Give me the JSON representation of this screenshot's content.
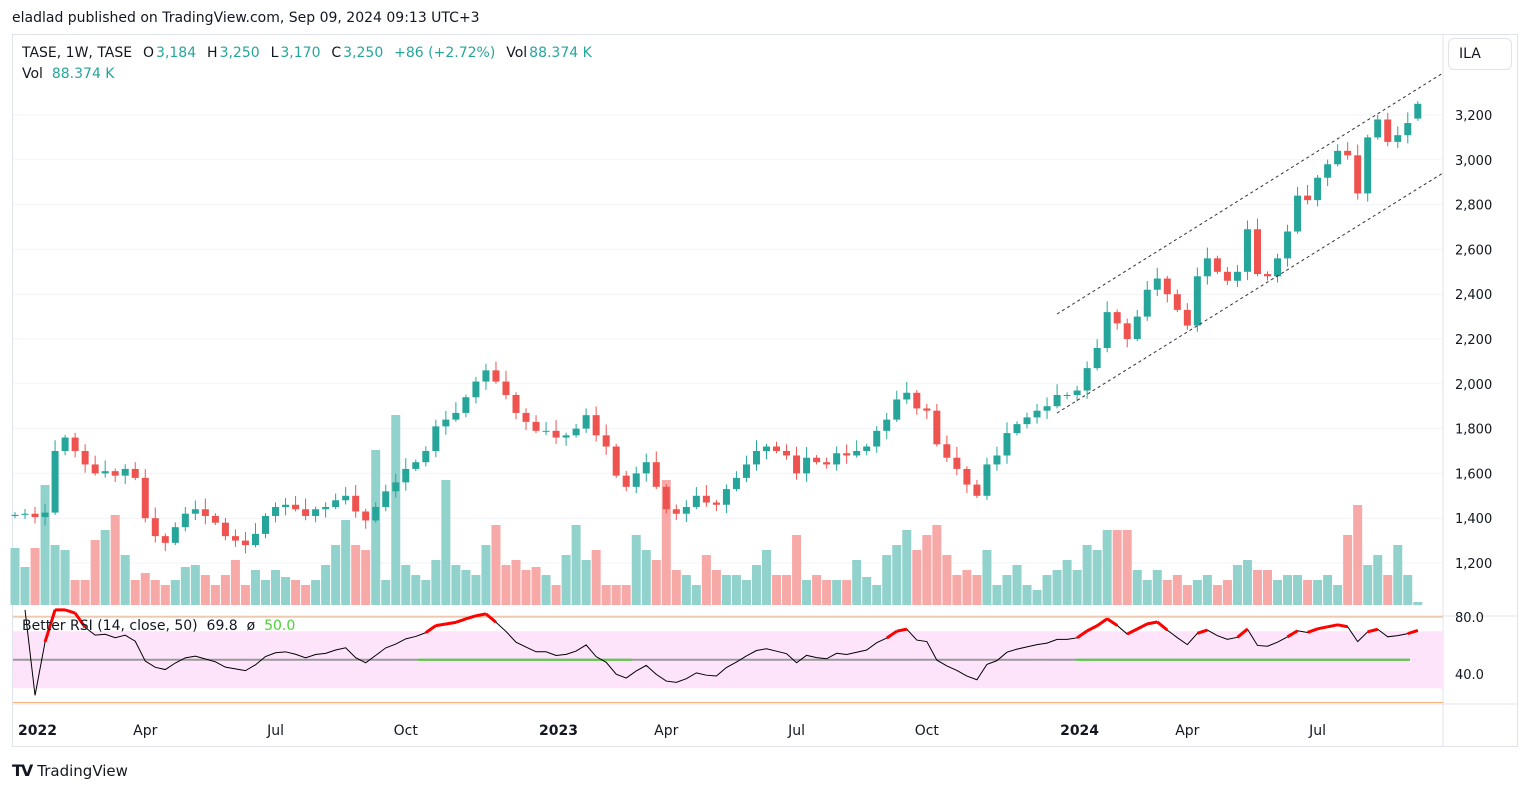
{
  "publisher_line": "eladlad published on TradingView.com, Sep 09, 2024 09:13 UTC+3",
  "legend": {
    "symbol": "TASE, 1W, TASE",
    "o_label": "O",
    "o": "3,184",
    "h_label": "H",
    "h": "3,250",
    "l_label": "L",
    "l": "3,170",
    "c_label": "C",
    "c": "3,250",
    "change": "+86 (+2.72%)",
    "vol_label": "Vol",
    "vol": "88.374 K"
  },
  "vol_legend": {
    "label": "Vol",
    "value": "88.374 K"
  },
  "currency_button": "ILA",
  "rsi_legend": {
    "name": "Better RSI (14, close, 50)",
    "value": "69.8",
    "symbol": "ø",
    "mid": "50.0"
  },
  "footer": {
    "brand": "TradingView"
  },
  "colors": {
    "up": "#26a69a",
    "down": "#ef5350",
    "vol_up": "#92d2cc",
    "vol_down": "#f7a9a7",
    "rsi_band": "#fde4fb",
    "rsi_line": "#000000",
    "mid_green": "#4cd137",
    "level_orange": "#f7b27a"
  },
  "chart_data": {
    "type": "candlestick",
    "title": "TASE, 1W, TASE",
    "price_axis": {
      "ticks": [
        "3,200",
        "3,000",
        "2,800",
        "2,600",
        "2,400",
        "2,200",
        "2,000",
        "1,800",
        "1,600",
        "1,400",
        "1,200"
      ],
      "tick_values": [
        3200,
        3000,
        2800,
        2600,
        2400,
        2200,
        2000,
        1800,
        1600,
        1400,
        1200
      ]
    },
    "rsi_axis": {
      "ticks": [
        "80.0",
        "40.0"
      ],
      "tick_values": [
        80,
        40
      ],
      "band": [
        30,
        70
      ],
      "levels": [
        80,
        20
      ],
      "mid": 50
    },
    "time_axis": [
      {
        "label": "2022",
        "bold": true,
        "week": 0
      },
      {
        "label": "Apr",
        "week": 13
      },
      {
        "label": "Jul",
        "week": 26
      },
      {
        "label": "Oct",
        "week": 39
      },
      {
        "label": "2023",
        "bold": true,
        "week": 52
      },
      {
        "label": "Apr",
        "week": 65
      },
      {
        "label": "Jul",
        "week": 78
      },
      {
        "label": "Oct",
        "week": 91
      },
      {
        "label": "2024",
        "bold": true,
        "week": 104
      },
      {
        "label": "Apr",
        "week": 117
      },
      {
        "label": "Jul",
        "week": 130
      }
    ],
    "close": [
      1415,
      1420,
      1405,
      1425,
      1700,
      1760,
      1700,
      1640,
      1600,
      1610,
      1590,
      1620,
      1580,
      1400,
      1320,
      1290,
      1360,
      1420,
      1440,
      1410,
      1380,
      1320,
      1300,
      1280,
      1330,
      1410,
      1450,
      1460,
      1440,
      1410,
      1440,
      1450,
      1480,
      1500,
      1430,
      1390,
      1450,
      1520,
      1560,
      1620,
      1650,
      1700,
      1810,
      1840,
      1870,
      1940,
      2010,
      2060,
      2010,
      1950,
      1870,
      1830,
      1790,
      1790,
      1760,
      1770,
      1800,
      1860,
      1770,
      1720,
      1590,
      1540,
      1600,
      1650,
      1540,
      1440,
      1420,
      1450,
      1500,
      1470,
      1460,
      1530,
      1580,
      1640,
      1700,
      1720,
      1700,
      1680,
      1600,
      1670,
      1650,
      1640,
      1690,
      1680,
      1700,
      1720,
      1790,
      1840,
      1930,
      1960,
      1890,
      1880,
      1730,
      1670,
      1620,
      1550,
      1500,
      1640,
      1680,
      1780,
      1820,
      1850,
      1880,
      1900,
      1950,
      1950,
      1970,
      2070,
      2160,
      2320,
      2270,
      2200,
      2300,
      2420,
      2470,
      2400,
      2330,
      2260,
      2480,
      2560,
      2500,
      2460,
      2500,
      2690,
      2490,
      2480,
      2560,
      2680,
      2840,
      2820,
      2920,
      2980,
      3040,
      3020,
      2850,
      3100,
      3180,
      3080,
      3110,
      3164,
      3250
    ],
    "volume_relative": [
      57,
      38,
      57,
      120,
      60,
      55,
      25,
      25,
      65,
      75,
      90,
      50,
      25,
      32,
      25,
      20,
      25,
      38,
      40,
      30,
      20,
      30,
      45,
      20,
      35,
      25,
      35,
      28,
      25,
      20,
      25,
      40,
      60,
      85,
      60,
      55,
      155,
      25,
      190,
      40,
      30,
      25,
      45,
      125,
      40,
      35,
      30,
      60,
      80,
      40,
      45,
      35,
      38,
      30,
      20,
      50,
      80,
      45,
      55,
      20,
      20,
      20,
      70,
      55,
      45,
      125,
      35,
      30,
      20,
      50,
      35,
      30,
      30,
      25,
      40,
      55,
      30,
      30,
      70,
      25,
      30,
      25,
      25,
      25,
      45,
      28,
      20,
      50,
      60,
      75,
      55,
      70,
      80,
      50,
      30,
      35,
      30,
      55,
      20,
      30,
      40,
      20,
      15,
      30,
      35,
      45,
      35,
      60,
      55,
      75,
      75,
      75,
      35,
      25,
      35,
      25,
      30,
      20,
      25,
      30,
      20,
      25,
      40,
      45,
      35,
      35,
      25,
      30,
      30,
      25,
      25,
      30,
      20,
      70,
      100,
      40,
      50,
      30,
      60,
      30,
      3
    ],
    "channel": {
      "upper": [
        [
          2300,
          "Dec 2023"
        ],
        [
          3400,
          "Sep 2024"
        ]
      ],
      "lower": [
        [
          1860,
          "Dec 2023"
        ],
        [
          2950,
          "Sep 2024"
        ]
      ]
    }
  }
}
